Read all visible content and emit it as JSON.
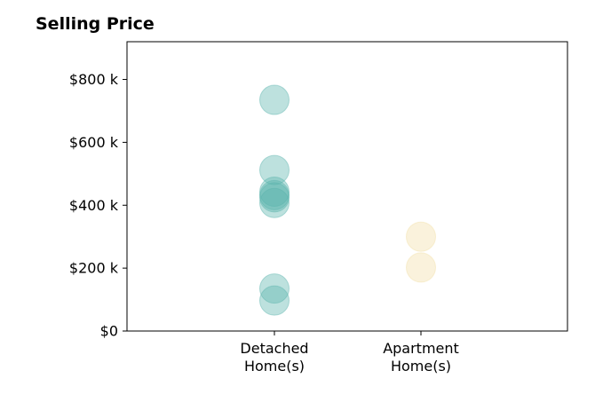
{
  "chart_data": {
    "type": "scatter",
    "title": "Selling Price",
    "xlabel": "",
    "ylabel": "",
    "categories": [
      [
        "Detached",
        "Home(s)"
      ],
      [
        "Apartment",
        "Home(s)"
      ]
    ],
    "ylim": [
      0,
      920000
    ],
    "yticks": [
      {
        "value": 0,
        "label": "$0"
      },
      {
        "value": 200000,
        "label": "$200 k"
      },
      {
        "value": 400000,
        "label": "$400 k"
      },
      {
        "value": 600000,
        "label": "$600 k"
      },
      {
        "value": 800000,
        "label": "$800 k"
      }
    ],
    "grid": false,
    "series": [
      {
        "category": 0,
        "color": "#5ab4ac",
        "values": [
          735000,
          512000,
          443000,
          432000,
          425000,
          407000,
          135000,
          97000
        ]
      },
      {
        "category": 1,
        "color": "#f2dfa7",
        "values": [
          300000,
          202000
        ]
      }
    ]
  }
}
